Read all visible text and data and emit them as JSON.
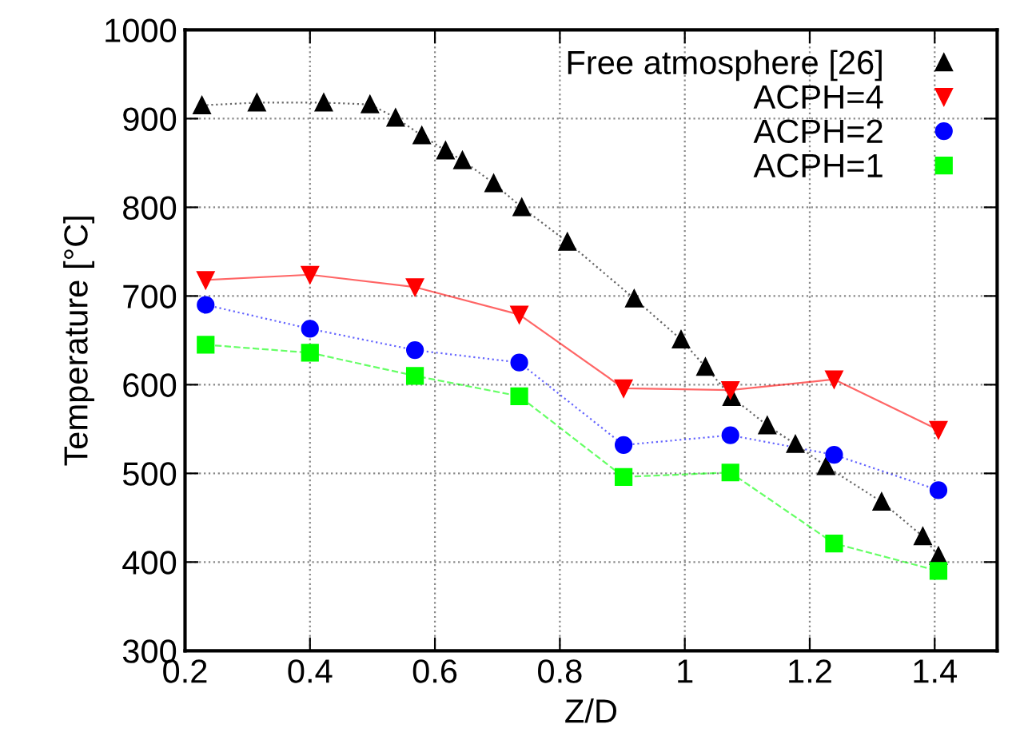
{
  "chart_data": {
    "type": "line",
    "xlabel": "Z/D",
    "ylabel": "Temperature [°C]",
    "xlim": [
      0.2,
      1.5
    ],
    "xticks": [
      0.2,
      0.4,
      0.6,
      0.8,
      1,
      1.2,
      1.4
    ],
    "ylim": [
      300,
      1000
    ],
    "yticks": [
      300,
      400,
      500,
      600,
      700,
      800,
      900,
      1000
    ],
    "grid": true,
    "legend": "top right",
    "series": [
      {
        "name": "Free atmosphere [26]",
        "color": "#000000",
        "marker": "triangle",
        "line_style": "dotted",
        "x": [
          0.227,
          0.315,
          0.422,
          0.496,
          0.537,
          0.579,
          0.617,
          0.644,
          0.694,
          0.739,
          0.812,
          0.919,
          0.994,
          1.033,
          1.075,
          1.132,
          1.177,
          1.226,
          1.315,
          1.381,
          1.406
        ],
        "values": [
          915,
          918,
          918,
          916,
          901,
          881,
          864,
          853,
          827,
          800,
          761,
          697,
          651,
          620,
          586,
          554,
          533,
          508,
          468,
          429,
          407
        ]
      },
      {
        "name": "ACPH=4",
        "color": "#ff0000",
        "marker": "triangle_down",
        "line_style": "solid",
        "x": [
          0.233,
          0.4,
          0.568,
          0.735,
          0.902,
          1.073,
          1.239,
          1.406
        ],
        "values": [
          718,
          724,
          710,
          679,
          596,
          594,
          606,
          549
        ]
      },
      {
        "name": "ACPH=2",
        "color": "#0000ff",
        "marker": "circle",
        "line_style": "dotted",
        "x": [
          0.233,
          0.4,
          0.568,
          0.735,
          0.902,
          1.073,
          1.239,
          1.406
        ],
        "values": [
          690,
          663,
          639,
          625,
          532,
          543,
          521,
          481
        ]
      },
      {
        "name": "ACPH=1",
        "color": "#00ff00",
        "marker": "square",
        "line_style": "dashed",
        "x": [
          0.233,
          0.4,
          0.568,
          0.735,
          0.902,
          1.073,
          1.239,
          1.406
        ],
        "values": [
          645,
          636,
          610,
          587,
          496,
          501,
          421,
          390
        ]
      }
    ]
  }
}
